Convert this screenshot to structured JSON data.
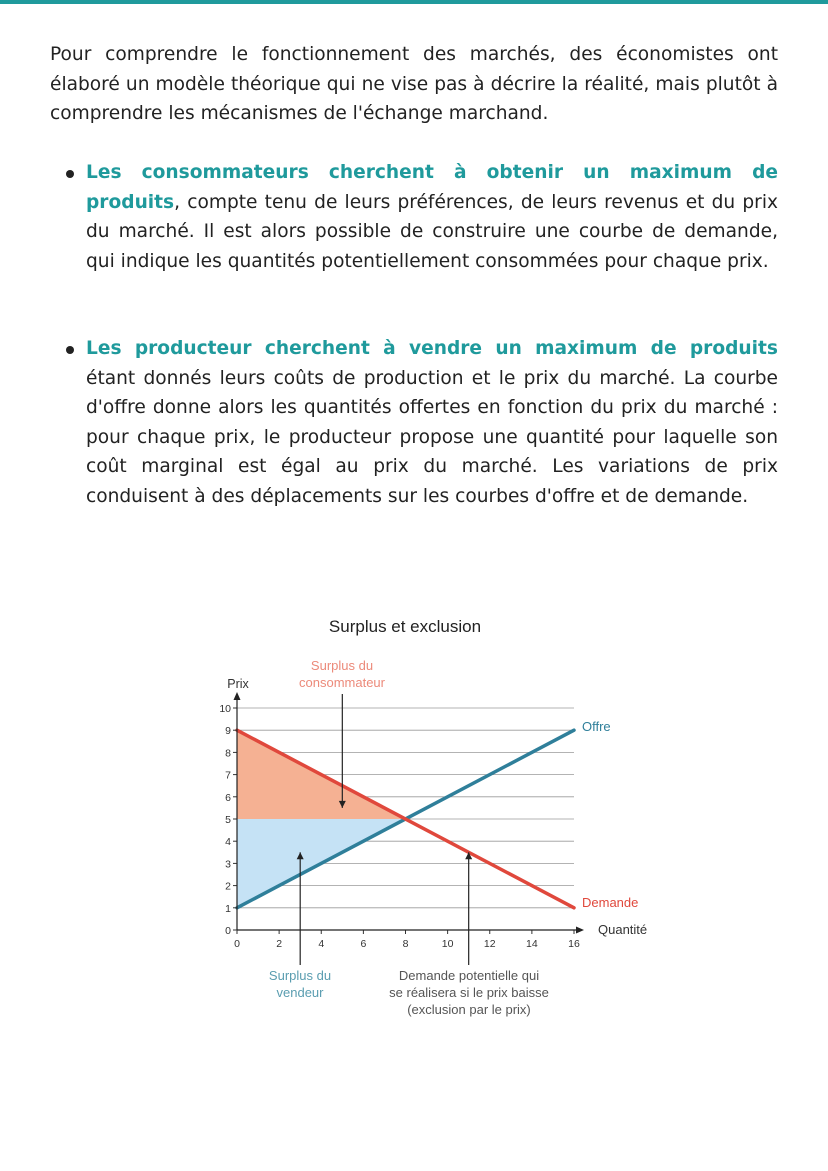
{
  "intro": "Pour comprendre le fonctionnement des marchés, des économistes ont élaboré un modèle théorique qui ne vise pas à décrire la réalité, mais plutôt à comprendre les mécanismes de l'échange marchand.",
  "bullets": [
    {
      "highlight": "Les consommateurs cherchent à obtenir un maximum de produits",
      "text": ", compte tenu de leurs préférences, de leurs revenus et du prix du marché. Il est alors possible de construire une courbe de demande, qui indique les quantités potentiellement consommées pour chaque prix."
    },
    {
      "highlight": "Les producteur cherchent à vendre un maximum de produits",
      "text": " étant donnés leurs coûts de production et le prix du marché. La courbe d'offre donne alors les quantités offertes en fonction du prix du marché : pour chaque prix, le producteur propose une quantité pour laquelle son coût marginal est égal au prix du marché. Les variations de prix conduisent à des déplacements sur les courbes d'offre et de demande."
    }
  ],
  "colors": {
    "accent": "#1f9a9c",
    "demand": "#e0483c",
    "offer": "#2f7f9a",
    "consumer_surplus": "#f5b193",
    "seller_surplus": "#c5e2f5"
  },
  "chart_data": {
    "type": "line",
    "title": "Surplus et exclusion",
    "xlabel": "Quantité",
    "ylabel": "Prix",
    "xlim": [
      0,
      16
    ],
    "ylim": [
      0,
      10
    ],
    "xticks": [
      0,
      2,
      4,
      6,
      8,
      10,
      12,
      14,
      16
    ],
    "yticks": [
      0,
      1,
      2,
      3,
      4,
      5,
      6,
      7,
      8,
      9,
      10
    ],
    "grid": "horizontal",
    "series": [
      {
        "name": "Offre",
        "x": [
          0,
          16
        ],
        "y": [
          1,
          9
        ]
      },
      {
        "name": "Demande",
        "x": [
          0,
          16
        ],
        "y": [
          9,
          1
        ]
      }
    ],
    "areas": [
      {
        "name": "Surplus du consommateur",
        "points": [
          [
            0,
            9
          ],
          [
            0,
            5
          ],
          [
            8,
            5
          ]
        ]
      },
      {
        "name": "Surplus du vendeur",
        "points": [
          [
            0,
            5
          ],
          [
            0,
            1
          ],
          [
            8,
            5
          ]
        ]
      }
    ],
    "annotations": [
      {
        "text": "Surplus du consommateur",
        "arrow_x": 5,
        "arrow_to_y": 5.5
      },
      {
        "text": "Surplus du vendeur",
        "arrow_x": 3,
        "arrow_to_y": 3.5
      },
      {
        "text": "Demande potentielle qui se réalisera si le prix baisse (exclusion par le prix)",
        "arrow_x": 11,
        "arrow_to_y": 3.5
      }
    ]
  }
}
